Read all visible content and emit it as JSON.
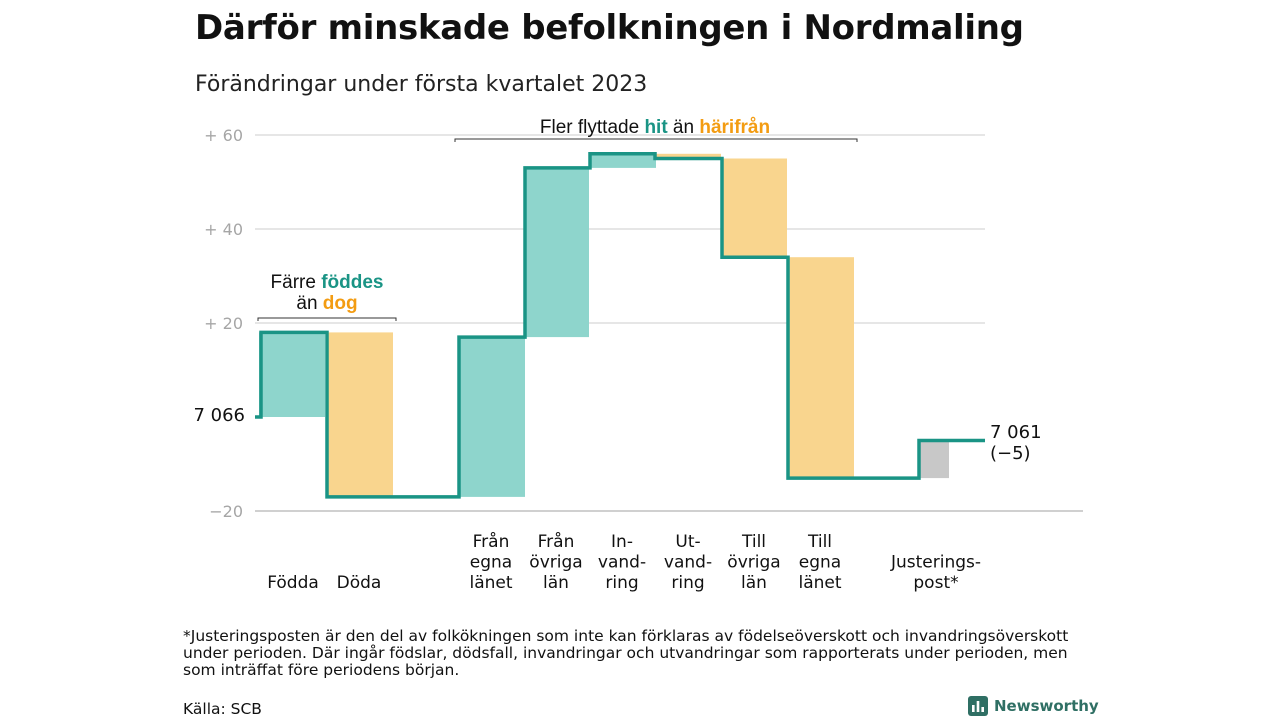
{
  "title": "Därför minskade befolkningen i Nordmaling",
  "subtitle": "Förändringar under första kvartalet 2023",
  "chart_data": {
    "type": "waterfall",
    "y_ticks": [
      {
        "value": 60,
        "label": "+ 60"
      },
      {
        "value": 40,
        "label": "+ 40"
      },
      {
        "value": 20,
        "label": "+ 20"
      },
      {
        "value": -20,
        "label": "−20"
      }
    ],
    "ylim": [
      -20,
      60
    ],
    "grid": true,
    "start": {
      "value": 0,
      "label": "7 066"
    },
    "end": {
      "value": -5,
      "label": "7 061",
      "sublabel": "(−5)"
    },
    "steps": [
      {
        "label": [
          "Födda"
        ],
        "from": 0,
        "to": 18,
        "kind": "in"
      },
      {
        "label": [
          "Döda"
        ],
        "from": 18,
        "to": -17,
        "kind": "out"
      },
      {
        "label": [
          "Från",
          "egna",
          "länet"
        ],
        "from": -17,
        "to": 17,
        "kind": "in"
      },
      {
        "label": [
          "Från",
          "övriga",
          "län"
        ],
        "from": 17,
        "to": 53,
        "kind": "in"
      },
      {
        "label": [
          "In-",
          "vand-",
          "ring"
        ],
        "from": 53,
        "to": 56,
        "kind": "in"
      },
      {
        "label": [
          "Ut-",
          "vand-",
          "ring"
        ],
        "from": 56,
        "to": 55,
        "kind": "out"
      },
      {
        "label": [
          "Till",
          "övriga",
          "län"
        ],
        "from": 55,
        "to": 34,
        "kind": "out"
      },
      {
        "label": [
          "Till",
          "egna",
          "länet"
        ],
        "from": 34,
        "to": -13,
        "kind": "out"
      },
      {
        "label": [
          "Justerings-",
          "post*"
        ],
        "from": -13,
        "to": -5,
        "kind": "adjust"
      }
    ],
    "annotations": [
      {
        "id": "births",
        "parts": [
          {
            "line": 0,
            "text": "Färre ",
            "color": "dark"
          },
          {
            "line": 0,
            "text": "föddes",
            "color": "teal"
          },
          {
            "line": 1,
            "text": "än ",
            "color": "dark"
          },
          {
            "line": 1,
            "text": "dog",
            "color": "orange"
          }
        ]
      },
      {
        "id": "migration",
        "parts": [
          {
            "line": 0,
            "text": "Fler flyttade ",
            "color": "dark"
          },
          {
            "line": 0,
            "text": "hit",
            "color": "teal"
          },
          {
            "line": 0,
            "text": " än ",
            "color": "dark"
          },
          {
            "line": 0,
            "text": "härifrån",
            "color": "orange"
          }
        ]
      }
    ],
    "colors": {
      "line": "#1a9485",
      "in_fill": "#8ed5cc",
      "out_fill": "#f9d58e",
      "adjust_fill": "#c8c8c8",
      "teal": "#1a9485",
      "orange": "#f39c12",
      "dark": "#111111",
      "grid": "#dddddd",
      "tick": "#a6a6a6"
    }
  },
  "footnote": "*Justeringsposten är den del av folkökningen som inte kan förklaras av födelseöverskott och invandringsöverskott under perioden. Där ingår födslar, dödsfall, invandringar och utvandringar som rapporterats under perioden, men som inträffat före periodens början.",
  "source": "Källa: SCB",
  "brand": {
    "name": "Newsworthy",
    "icon": "bar-chart-icon"
  }
}
